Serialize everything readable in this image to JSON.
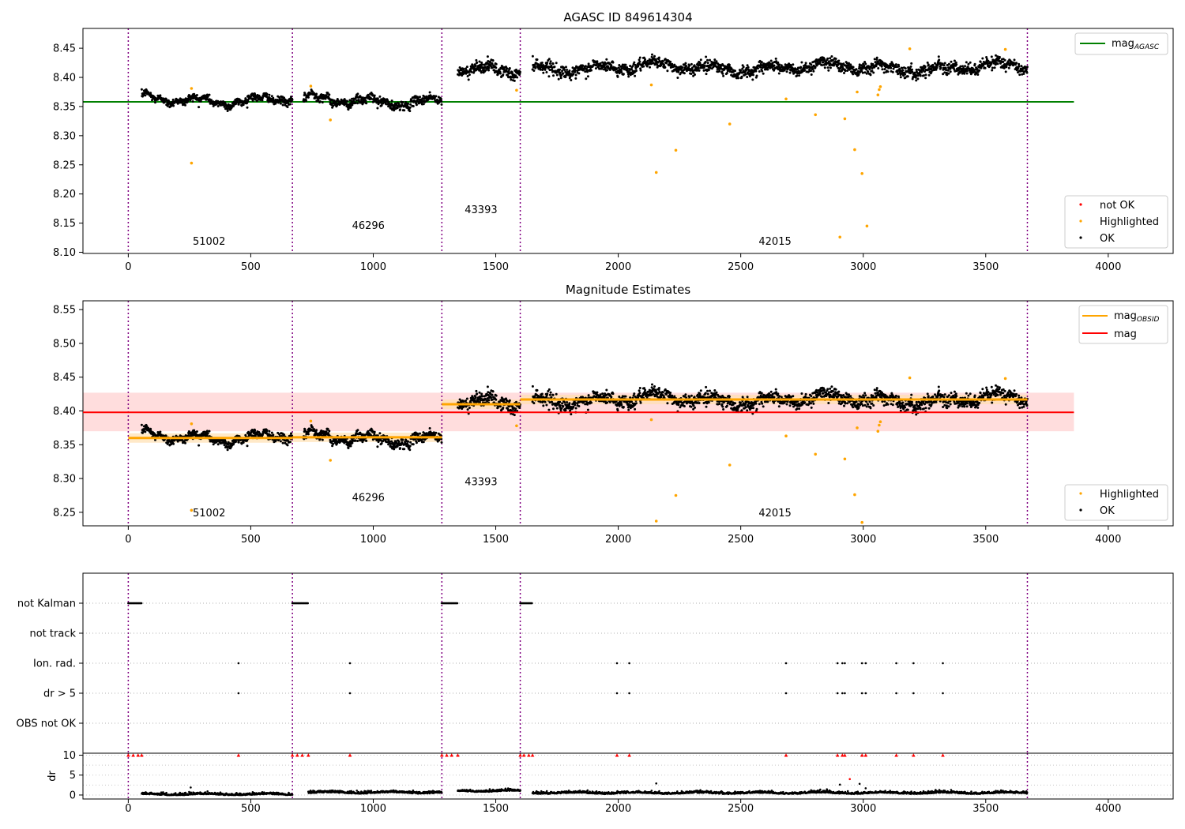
{
  "figure": {
    "colors": {
      "ok": "#000000",
      "highlighted": "#ffa500",
      "not_ok": "#ff0000",
      "mag_agasc": "#008000",
      "mag": "#ff0000",
      "mag_obsid": "#ffa500",
      "obs_boundary": "#800080",
      "band": "#ffdddd",
      "band_obsid": "#ffe0b0"
    }
  },
  "chart_data": [
    {
      "type": "scatter",
      "title": "AGASC ID 849614304",
      "xlim": [
        -185,
        4265
      ],
      "ylim": [
        8.098,
        8.484
      ],
      "x_ticks": [
        "0",
        "500",
        "1000",
        "1500",
        "2000",
        "2500",
        "3000",
        "3500",
        "4000"
      ],
      "y_ticks": [
        "8.10",
        "8.15",
        "8.20",
        "8.25",
        "8.30",
        "8.35",
        "8.40",
        "8.45"
      ],
      "legend_upper": [
        {
          "label": "mag",
          "sub": "AGASC",
          "style": "line",
          "color": "#008000"
        }
      ],
      "legend_lower": [
        {
          "label": "not OK",
          "style": "dot",
          "color": "#ff0000"
        },
        {
          "label": "Highlighted",
          "style": "dot",
          "color": "#ffa500"
        },
        {
          "label": "OK",
          "style": "dot",
          "color": "#000000"
        }
      ],
      "hlines": [
        {
          "name": "mag_agasc",
          "y": 8.358,
          "x0": -185,
          "x1": 3860
        }
      ],
      "obs_boundaries": [
        0,
        670,
        1280,
        1600,
        3670
      ],
      "obs_labels": [
        {
          "text": "51002",
          "x": 330,
          "y": 8.113
        },
        {
          "text": "46296",
          "x": 980,
          "y": 8.14
        },
        {
          "text": "43393",
          "x": 1440,
          "y": 8.167
        },
        {
          "text": "42015",
          "x": 2640,
          "y": 8.113
        }
      ],
      "segments": [
        {
          "x0": 55,
          "x1": 670,
          "mean": 8.362,
          "sd": 0.006
        },
        {
          "x0": 715,
          "x1": 1280,
          "mean": 8.36,
          "sd": 0.007
        },
        {
          "x0": 1345,
          "x1": 1600,
          "mean": 8.41,
          "sd": 0.009
        },
        {
          "x0": 1650,
          "x1": 3670,
          "mean": 8.417,
          "sd": 0.009
        }
      ],
      "highlighted_points": [
        [
          258,
          8.253
        ],
        [
          258,
          8.381
        ],
        [
          745,
          8.385
        ],
        [
          825,
          8.327
        ],
        [
          1585,
          8.378
        ],
        [
          2135,
          8.387
        ],
        [
          2155,
          8.237
        ],
        [
          2235,
          8.275
        ],
        [
          2455,
          8.32
        ],
        [
          2685,
          8.363
        ],
        [
          2805,
          8.336
        ],
        [
          2905,
          8.126
        ],
        [
          2925,
          8.329
        ],
        [
          2965,
          8.276
        ],
        [
          2975,
          8.375
        ],
        [
          2995,
          8.235
        ],
        [
          3015,
          8.145
        ],
        [
          3060,
          8.37
        ],
        [
          3065,
          8.379
        ],
        [
          3070,
          8.384
        ],
        [
          3190,
          8.449
        ],
        [
          3580,
          8.448
        ]
      ]
    },
    {
      "type": "scatter",
      "title": "Magnitude Estimates",
      "xlim": [
        -185,
        4265
      ],
      "ylim": [
        8.23,
        8.563
      ],
      "x_ticks": [
        "0",
        "500",
        "1000",
        "1500",
        "2000",
        "2500",
        "3000",
        "3500",
        "4000"
      ],
      "y_ticks": [
        "8.25",
        "8.30",
        "8.35",
        "8.40",
        "8.45",
        "8.50",
        "8.55"
      ],
      "legend_upper": [
        {
          "label": "mag",
          "sub": "OBSID",
          "style": "line",
          "color": "#ffa500"
        },
        {
          "label": "mag",
          "style": "line",
          "color": "#ff0000"
        }
      ],
      "legend_lower": [
        {
          "label": "Highlighted",
          "style": "dot",
          "color": "#ffa500"
        },
        {
          "label": "OK",
          "style": "dot",
          "color": "#000000"
        }
      ],
      "mag": {
        "value": 8.398,
        "band": [
          8.37,
          8.427
        ],
        "x0": -185,
        "x1": 3860
      },
      "mag_obsid": [
        {
          "x0": 0,
          "x1": 670,
          "y": 8.36
        },
        {
          "x0": 670,
          "x1": 1280,
          "y": 8.361
        },
        {
          "x0": 1280,
          "x1": 1600,
          "y": 8.41
        },
        {
          "x0": 1600,
          "x1": 3670,
          "y": 8.417
        }
      ],
      "obs_boundaries": [
        0,
        670,
        1280,
        1600,
        3670
      ],
      "obs_labels": [
        {
          "text": "51002",
          "x": 330,
          "y": 8.244
        },
        {
          "text": "46296",
          "x": 980,
          "y": 8.267
        },
        {
          "text": "43393",
          "x": 1440,
          "y": 8.29
        },
        {
          "text": "42015",
          "x": 2640,
          "y": 8.244
        }
      ]
    },
    {
      "type": "scatter",
      "title": "",
      "xlim": [
        -185,
        4265
      ],
      "categories": [
        "not Kalman",
        "not track",
        "Ion. rad.",
        "dr > 5",
        "OBS not OK"
      ],
      "flag_runs": [
        {
          "category": "not Kalman",
          "ranges": [
            [
              0,
              55
            ],
            [
              670,
              735
            ],
            [
              1280,
              1345
            ],
            [
              1600,
              1650
            ]
          ]
        }
      ],
      "flag_events": [
        {
          "category": "Ion. rad.",
          "x": [
            450,
            905,
            1995,
            2045,
            2685,
            2895,
            2915,
            2925,
            2995,
            3010,
            3135,
            3205,
            3325
          ]
        },
        {
          "category": "dr > 5",
          "x": [
            450,
            905,
            1995,
            2045,
            2685,
            2895,
            2915,
            2925,
            2995,
            3010,
            3135,
            3205,
            3325
          ]
        }
      ]
    },
    {
      "type": "scatter",
      "title": "",
      "xlim": [
        -185,
        4265
      ],
      "ylim": [
        -1,
        10.5
      ],
      "ylabel": "dr",
      "x_ticks": [
        "0",
        "500",
        "1000",
        "1500",
        "2000",
        "2500",
        "3000",
        "3500",
        "4000"
      ],
      "y_ticks": [
        "0",
        "5",
        "10"
      ],
      "clipped_value": 10,
      "clipped_markers_x": [
        0,
        20,
        40,
        55,
        670,
        690,
        710,
        735,
        1280,
        1300,
        1320,
        1345,
        1600,
        1615,
        1635,
        1650,
        450,
        905,
        1995,
        2045,
        2685,
        2895,
        2915,
        2925,
        2995,
        3010,
        3135,
        3205,
        3325
      ],
      "dr_levels": [
        {
          "x0": 55,
          "x1": 670,
          "mean": 0.15
        },
        {
          "x0": 735,
          "x1": 1280,
          "mean": 0.6
        },
        {
          "x0": 1345,
          "x1": 1600,
          "mean": 1.0
        },
        {
          "x0": 1650,
          "x1": 3670,
          "mean": 0.5
        }
      ],
      "dr_outliers": [
        [
          255,
          1.9
        ],
        [
          2155,
          2.9
        ],
        [
          2905,
          2.6
        ],
        [
          2945,
          4.0
        ],
        [
          2985,
          2.8
        ],
        [
          3010,
          1.7
        ]
      ]
    }
  ]
}
